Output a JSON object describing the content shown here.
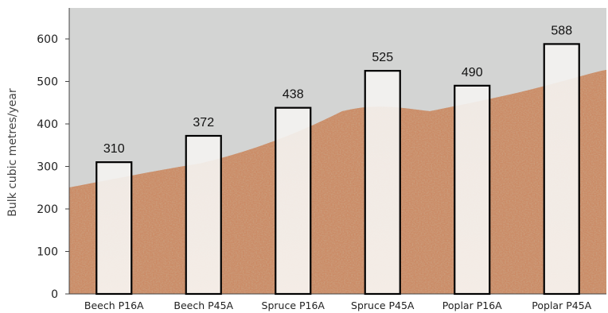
{
  "chart_data": {
    "type": "bar",
    "categories": [
      "Beech P16A",
      "Beech P45A",
      "Spruce P16A",
      "Spruce P45A",
      "Poplar P16A",
      "Poplar P45A"
    ],
    "values": [
      310,
      372,
      438,
      525,
      490,
      588
    ],
    "data_labels": [
      "310",
      "372",
      "438",
      "525",
      "490",
      "588"
    ],
    "title": "",
    "xlabel": "",
    "ylabel": "Bulk cubic metres/year",
    "ylim": [
      0,
      650
    ],
    "yticks": [
      0,
      100,
      200,
      300,
      400,
      500,
      600
    ],
    "ytick_labels": [
      "0",
      "100",
      "200",
      "300",
      "400",
      "500",
      "600"
    ],
    "grid": false,
    "legend": "none",
    "colors": {
      "plot_background": "#d3d4d3",
      "bar_fill": "#f6f5f2",
      "bar_stroke": "#000000",
      "wood_chips_dark": "#b4663f",
      "wood_chips_light": "#dcae8e"
    }
  }
}
